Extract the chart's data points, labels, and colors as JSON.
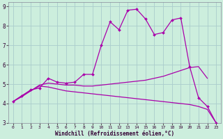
{
  "xlabel": "Windchill (Refroidissement éolien,°C)",
  "bg_color": "#cceedd",
  "grid_color": "#aacccc",
  "line_color": "#aa00aa",
  "xlim": [
    -0.5,
    23.5
  ],
  "ylim": [
    3,
    9.2
  ],
  "xticks": [
    0,
    1,
    2,
    3,
    4,
    5,
    6,
    7,
    8,
    9,
    10,
    11,
    12,
    13,
    14,
    15,
    16,
    17,
    18,
    19,
    20,
    21,
    22,
    23
  ],
  "yticks": [
    3,
    4,
    5,
    6,
    7,
    8,
    9
  ],
  "hours": [
    0,
    1,
    2,
    3,
    4,
    5,
    6,
    7,
    8,
    9,
    10,
    11,
    12,
    13,
    14,
    15,
    16,
    17,
    18,
    19,
    20,
    21,
    22,
    23
  ],
  "line1": [
    4.1,
    4.4,
    4.7,
    4.8,
    5.3,
    5.1,
    5.05,
    5.1,
    5.5,
    5.5,
    7.0,
    8.2,
    7.8,
    8.8,
    8.85,
    8.35,
    7.55,
    7.65,
    8.3,
    8.4,
    5.9,
    4.3,
    3.85,
    3.0
  ],
  "line2": [
    4.1,
    4.35,
    4.65,
    4.9,
    4.85,
    4.75,
    4.65,
    4.6,
    4.55,
    4.5,
    4.45,
    4.4,
    4.35,
    4.3,
    4.25,
    4.2,
    4.15,
    4.1,
    4.05,
    4.0,
    3.95,
    3.85,
    3.7,
    3.0
  ],
  "line3": [
    4.1,
    4.4,
    4.65,
    4.95,
    5.05,
    5.0,
    4.95,
    4.95,
    4.9,
    4.9,
    4.95,
    5.0,
    5.05,
    5.1,
    5.15,
    5.2,
    5.3,
    5.4,
    5.55,
    5.7,
    5.85,
    5.9,
    5.3,
    null
  ]
}
